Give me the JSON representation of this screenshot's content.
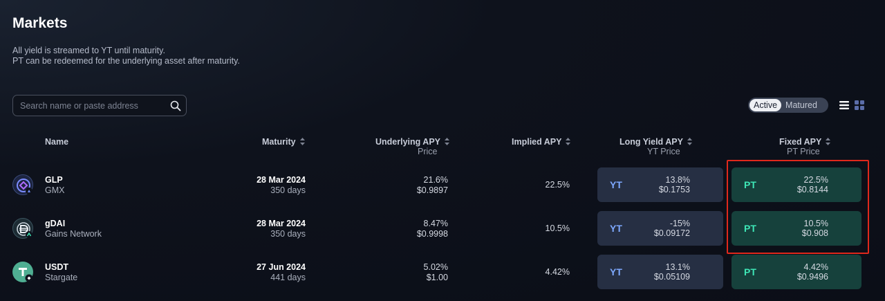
{
  "page": {
    "title": "Markets",
    "description_line1": "All yield is streamed to YT until maturity.",
    "description_line2": "PT can be redeemed for the underlying asset after maturity."
  },
  "search": {
    "placeholder": "Search name or paste address"
  },
  "filter": {
    "active_label": "Active",
    "matured_label": "Matured",
    "selected": "Active"
  },
  "columns": {
    "name": "Name",
    "maturity": "Maturity",
    "underlying_apy": "Underlying APY",
    "underlying_sub": "Price",
    "implied_apy": "Implied APY",
    "long_yield_apy": "Long Yield APY",
    "long_yield_sub": "YT Price",
    "fixed_apy": "Fixed APY",
    "fixed_sub": "PT Price"
  },
  "markets": [
    {
      "name": "GLP",
      "protocol": "GMX",
      "icon": "glp-logo-icon",
      "maturity_date": "28 Mar 2024",
      "maturity_days": "350 days",
      "underlying_apy": "21.6%",
      "underlying_price": "$0.9897",
      "implied_apy": "22.5%",
      "yt_label": "YT",
      "yt_apy": "13.8%",
      "yt_price": "$0.1753",
      "pt_label": "PT",
      "pt_apy": "22.5%",
      "pt_price": "$0.8144"
    },
    {
      "name": "gDAI",
      "protocol": "Gains Network",
      "icon": "gdai-logo-icon",
      "maturity_date": "28 Mar 2024",
      "maturity_days": "350 days",
      "underlying_apy": "8.47%",
      "underlying_price": "$0.9998",
      "implied_apy": "10.5%",
      "yt_label": "YT",
      "yt_apy": "-15%",
      "yt_price": "$0.09172",
      "pt_label": "PT",
      "pt_apy": "10.5%",
      "pt_price": "$0.908"
    },
    {
      "name": "USDT",
      "protocol": "Stargate",
      "icon": "usdt-logo-icon",
      "maturity_date": "27 Jun 2024",
      "maturity_days": "441 days",
      "underlying_apy": "5.02%",
      "underlying_price": "$1.00",
      "implied_apy": "4.42%",
      "yt_label": "YT",
      "yt_apy": "13.1%",
      "yt_price": "$0.05109",
      "pt_label": "PT",
      "pt_apy": "4.42%",
      "pt_price": "$0.9496"
    }
  ],
  "colors": {
    "highlight_box": "#e0281c",
    "yt_accent": "#7ea9ff",
    "pt_accent": "#3ee6b6"
  }
}
